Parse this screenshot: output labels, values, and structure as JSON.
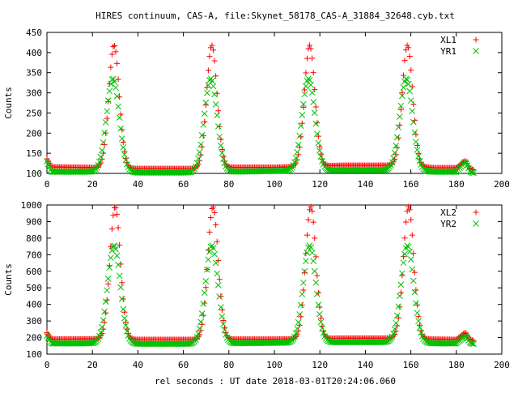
{
  "figure": {
    "title": "HIRES continuum, CAS-A, file:Skynet_58178_CAS-A_31884_32648.cyb.txt",
    "xlabel": "rel seconds : UT date 2018-03-01T20:24:06.060"
  },
  "colors": {
    "red": "#ff0000",
    "green": "#00c000"
  },
  "chart_data": [
    {
      "type": "scatter",
      "title": "",
      "xlabel": "",
      "ylabel": "Counts",
      "xlim": [
        0,
        200
      ],
      "ylim": [
        100,
        450
      ],
      "x_ticks": [
        0,
        20,
        40,
        60,
        80,
        100,
        120,
        140,
        160,
        180,
        200
      ],
      "y_ticks": [
        100,
        150,
        200,
        250,
        300,
        350,
        400,
        450
      ],
      "grid": false,
      "legend": "top-right",
      "marker_spacing": 0.55,
      "series": [
        {
          "name": "XL1",
          "marker": "plus",
          "color": "#ff0000",
          "x_range": [
            0,
            188
          ],
          "baseline": [
            [
              0,
              136
            ],
            [
              2,
              116
            ],
            [
              25,
              114
            ],
            [
              40,
              112
            ],
            [
              65,
              112
            ],
            [
              80,
              115
            ],
            [
              100,
              115
            ],
            [
              130,
              120
            ],
            [
              158,
              120
            ],
            [
              170,
              114
            ],
            [
              180,
              114
            ],
            [
              184,
              132
            ],
            [
              186,
              112
            ],
            [
              188,
              108
            ]
          ],
          "peaks": [
            {
              "center": 29.5,
              "height": 418,
              "sigma": 2.3
            },
            {
              "center": 72.5,
              "height": 418,
              "sigma": 2.3
            },
            {
              "center": 115.5,
              "height": 418,
              "sigma": 2.3
            },
            {
              "center": 158.5,
              "height": 418,
              "sigma": 2.3
            }
          ]
        },
        {
          "name": "YR1",
          "marker": "cross",
          "color": "#00c000",
          "x_range": [
            0,
            188
          ],
          "baseline": [
            [
              0,
              130
            ],
            [
              2,
              104
            ],
            [
              25,
              104
            ],
            [
              40,
              102
            ],
            [
              65,
              102
            ],
            [
              80,
              104
            ],
            [
              100,
              106
            ],
            [
              130,
              108
            ],
            [
              158,
              108
            ],
            [
              170,
              104
            ],
            [
              180,
              104
            ],
            [
              184,
              130
            ],
            [
              186,
              104
            ],
            [
              188,
              100
            ]
          ],
          "peaks": [
            {
              "center": 29,
              "height": 335,
              "sigma": 2.8
            },
            {
              "center": 72,
              "height": 335,
              "sigma": 2.8
            },
            {
              "center": 115,
              "height": 335,
              "sigma": 2.8
            },
            {
              "center": 158,
              "height": 335,
              "sigma": 2.8
            }
          ]
        }
      ]
    },
    {
      "type": "scatter",
      "title": "",
      "xlabel": "rel seconds : UT date 2018-03-01T20:24:06.060",
      "ylabel": "Counts",
      "xlim": [
        0,
        200
      ],
      "ylim": [
        100,
        1000
      ],
      "x_ticks": [
        0,
        20,
        40,
        60,
        80,
        100,
        120,
        140,
        160,
        180,
        200
      ],
      "y_ticks": [
        100,
        200,
        300,
        400,
        500,
        600,
        700,
        800,
        900,
        1000
      ],
      "grid": false,
      "legend": "top-right",
      "marker_spacing": 0.55,
      "series": [
        {
          "name": "XL2",
          "marker": "plus",
          "color": "#ff0000",
          "x_range": [
            0,
            188
          ],
          "baseline": [
            [
              0,
              230
            ],
            [
              2,
              190
            ],
            [
              25,
              192
            ],
            [
              40,
              188
            ],
            [
              65,
              188
            ],
            [
              80,
              190
            ],
            [
              100,
              190
            ],
            [
              130,
              196
            ],
            [
              158,
              196
            ],
            [
              170,
              190
            ],
            [
              180,
              188
            ],
            [
              184,
              232
            ],
            [
              186,
              188
            ],
            [
              188,
              180
            ]
          ],
          "peaks": [
            {
              "center": 30,
              "height": 990,
              "sigma": 2.3
            },
            {
              "center": 73,
              "height": 990,
              "sigma": 2.3
            },
            {
              "center": 116,
              "height": 990,
              "sigma": 2.3
            },
            {
              "center": 159,
              "height": 990,
              "sigma": 2.3
            }
          ]
        },
        {
          "name": "YR2",
          "marker": "cross",
          "color": "#00c000",
          "x_range": [
            0,
            188
          ],
          "baseline": [
            [
              0,
              210
            ],
            [
              2,
              165
            ],
            [
              25,
              165
            ],
            [
              40,
              162
            ],
            [
              65,
              162
            ],
            [
              80,
              165
            ],
            [
              100,
              168
            ],
            [
              130,
              172
            ],
            [
              158,
              172
            ],
            [
              170,
              165
            ],
            [
              180,
              165
            ],
            [
              184,
              210
            ],
            [
              186,
              168
            ],
            [
              188,
              160
            ]
          ],
          "peaks": [
            {
              "center": 29.5,
              "height": 755,
              "sigma": 2.8
            },
            {
              "center": 72.5,
              "height": 755,
              "sigma": 2.8
            },
            {
              "center": 115.5,
              "height": 755,
              "sigma": 2.8
            },
            {
              "center": 158.5,
              "height": 755,
              "sigma": 2.8
            }
          ]
        }
      ]
    }
  ]
}
